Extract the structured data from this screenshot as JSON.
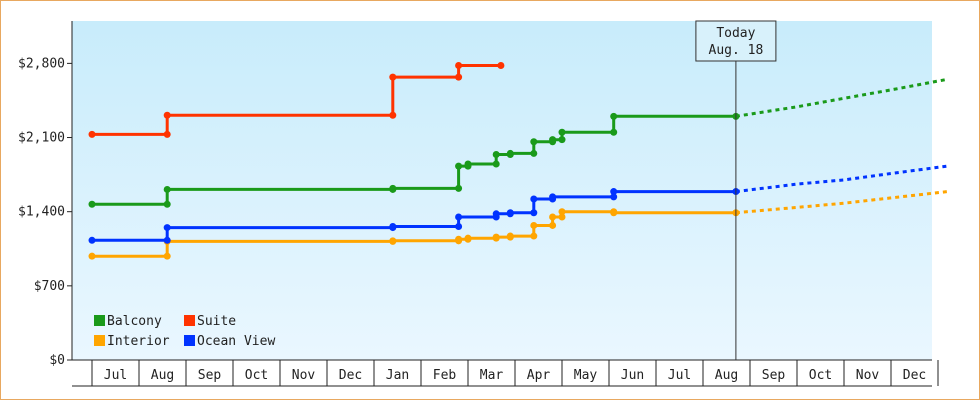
{
  "chart_data": {
    "type": "line",
    "title": "",
    "xlabel": "",
    "ylabel": "",
    "currency_prefix": "$",
    "ylim": [
      0,
      3200
    ],
    "y_ticks": [
      0,
      700,
      1400,
      2100,
      2800
    ],
    "x_ticks": [
      "Jul",
      "Aug",
      "Sep",
      "Oct",
      "Nov",
      "Dec",
      "Jan",
      "Feb",
      "Mar",
      "Apr",
      "May",
      "Jun",
      "Jul",
      "Aug",
      "Sep",
      "Oct",
      "Nov",
      "Dec"
    ],
    "x_range_months": [
      0,
      18.2
    ],
    "grid": {
      "x": false,
      "y": false
    },
    "legend": {
      "placement": "bottom-left",
      "entries": [
        {
          "name": "Balcony",
          "color": "#1a9a1a"
        },
        {
          "name": "Suite",
          "color": "#ff3300"
        },
        {
          "name": "Interior",
          "color": "#ffa500"
        },
        {
          "name": "Ocean View",
          "color": "#0033ff"
        }
      ]
    },
    "today": {
      "line1": "Today",
      "line2": "Aug. 18",
      "x": 13.7
    },
    "background_gradient": [
      "#c8ecfb",
      "#eaf7ff"
    ],
    "series": [
      {
        "name": "Balcony",
        "color": "#1a9a1a",
        "points": [
          [
            0,
            1470
          ],
          [
            1.6,
            1470
          ],
          [
            1.6,
            1610
          ],
          [
            6.4,
            1610
          ],
          [
            6.4,
            1620
          ],
          [
            7.8,
            1620
          ],
          [
            7.8,
            1830
          ],
          [
            8,
            1830
          ],
          [
            8,
            1850
          ],
          [
            8.6,
            1850
          ],
          [
            8.6,
            1940
          ],
          [
            8.9,
            1940
          ],
          [
            8.9,
            1950
          ],
          [
            9.4,
            1950
          ],
          [
            9.4,
            2060
          ],
          [
            9.8,
            2060
          ],
          [
            9.8,
            2080
          ],
          [
            10,
            2080
          ],
          [
            10,
            2150
          ],
          [
            11.1,
            2150
          ],
          [
            11.1,
            2300
          ],
          [
            13.7,
            2300
          ]
        ],
        "forecast": [
          [
            13.7,
            2300
          ],
          [
            15,
            2390
          ],
          [
            16,
            2470
          ],
          [
            17,
            2550
          ],
          [
            18.2,
            2650
          ]
        ]
      },
      {
        "name": "Suite",
        "color": "#ff3300",
        "points": [
          [
            0,
            2130
          ],
          [
            1.6,
            2130
          ],
          [
            1.6,
            2310
          ],
          [
            6.4,
            2310
          ],
          [
            6.4,
            2670
          ],
          [
            7.8,
            2670
          ],
          [
            7.8,
            2780
          ],
          [
            8.7,
            2780
          ]
        ],
        "forecast": []
      },
      {
        "name": "Interior",
        "color": "#ffa500",
        "points": [
          [
            0,
            980
          ],
          [
            1.6,
            980
          ],
          [
            1.6,
            1120
          ],
          [
            6.4,
            1120
          ],
          [
            6.4,
            1125
          ],
          [
            7.8,
            1125
          ],
          [
            7.8,
            1140
          ],
          [
            8,
            1140
          ],
          [
            8,
            1150
          ],
          [
            8.6,
            1150
          ],
          [
            8.6,
            1160
          ],
          [
            8.9,
            1160
          ],
          [
            8.9,
            1170
          ],
          [
            9.4,
            1170
          ],
          [
            9.4,
            1270
          ],
          [
            9.8,
            1270
          ],
          [
            9.8,
            1350
          ],
          [
            10,
            1350
          ],
          [
            10,
            1400
          ],
          [
            11.1,
            1400
          ],
          [
            11.1,
            1390
          ],
          [
            13.7,
            1390
          ]
        ],
        "forecast": [
          [
            13.7,
            1390
          ],
          [
            15,
            1440
          ],
          [
            16,
            1480
          ],
          [
            17,
            1530
          ],
          [
            18.2,
            1590
          ]
        ]
      },
      {
        "name": "Ocean View",
        "color": "#0033ff",
        "points": [
          [
            0,
            1130
          ],
          [
            1.6,
            1130
          ],
          [
            1.6,
            1250
          ],
          [
            6.4,
            1250
          ],
          [
            6.4,
            1260
          ],
          [
            7.8,
            1260
          ],
          [
            7.8,
            1350
          ],
          [
            8.6,
            1350
          ],
          [
            8.6,
            1380
          ],
          [
            8.9,
            1380
          ],
          [
            8.9,
            1390
          ],
          [
            9.4,
            1390
          ],
          [
            9.4,
            1520
          ],
          [
            9.8,
            1520
          ],
          [
            9.8,
            1540
          ],
          [
            11.1,
            1540
          ],
          [
            11.1,
            1590
          ],
          [
            13.7,
            1590
          ]
        ],
        "forecast": [
          [
            13.7,
            1590
          ],
          [
            15,
            1660
          ],
          [
            16,
            1700
          ],
          [
            17,
            1760
          ],
          [
            18.2,
            1830
          ]
        ]
      }
    ]
  }
}
